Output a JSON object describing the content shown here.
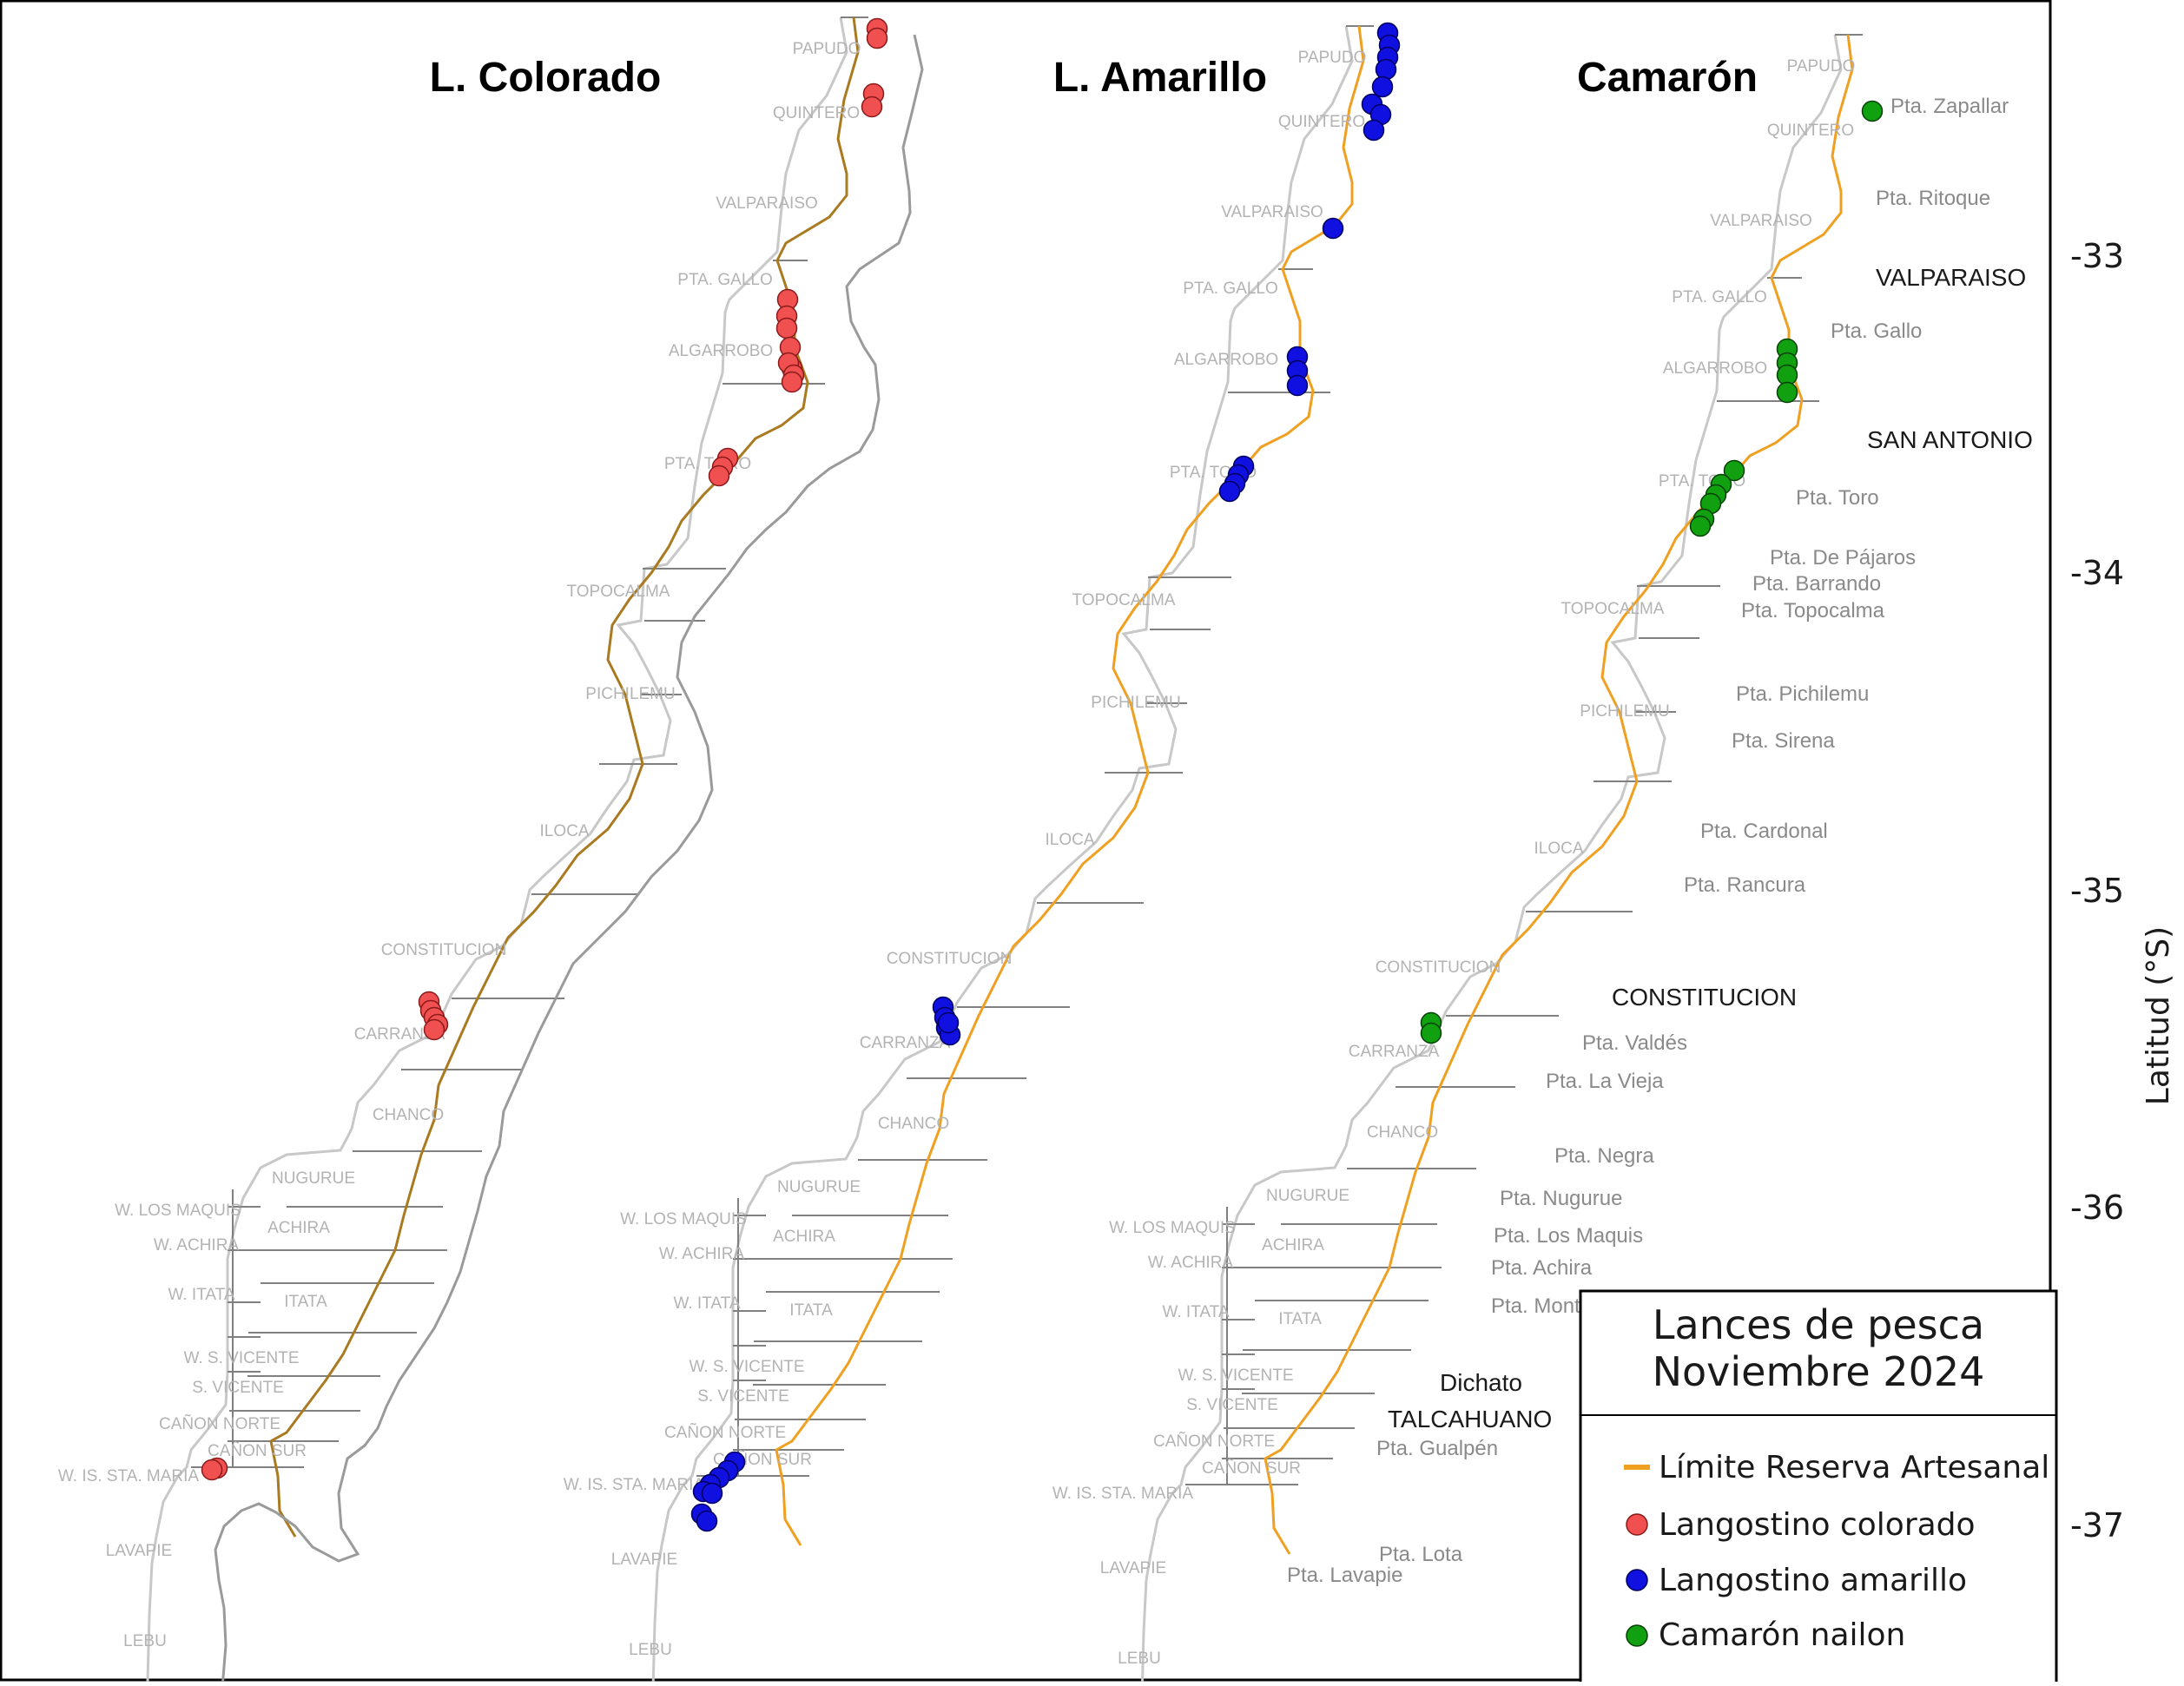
{
  "panels": [
    {
      "id": "colorado",
      "title": "L. Colorado",
      "series": "Langostino colorado"
    },
    {
      "id": "amarillo",
      "title": "L. Amarillo",
      "series": "Langostino amarillo"
    },
    {
      "id": "camaron",
      "title": "Camarón",
      "series": "Camarón nailon"
    }
  ],
  "zone_labels": [
    "PAPUDO",
    "QUINTERO",
    "VALPARAISO",
    "PTA. GALLO",
    "ALGARROBO",
    "PTA. TORO",
    "TOPOCALMA",
    "PICHILEMU",
    "ILOCA",
    "CONSTITUCION",
    "CARRANZA",
    "CHANCO",
    "NUGURUE",
    "W. LOS MAQUIS",
    "ACHIRA",
    "W. ACHIRA",
    "W. ITATA",
    "ITATA",
    "W. S. VICENTE",
    "S. VICENTE",
    "CAÑON NORTE",
    "CAÑON SUR",
    "W. IS. STA. MARIA",
    "LAVAPIE",
    "LEBU"
  ],
  "place_labels": [
    "Pta. Zapallar",
    "Pta. Ritoque",
    "Pta. Gallo",
    "Pta. Toro",
    "Pta. De Pájaros",
    "Pta. Barrando",
    "Pta. Topocalma",
    "Pta. Pichilemu",
    "Pta. Sirena",
    "Pta. Cardonal",
    "Pta. Rancura",
    "Pta. Valdés",
    "Pta. La Vieja",
    "Pta. Negra",
    "Pta. Nugurue",
    "Pta. Los Maquis",
    "Pta. Achira",
    "Pta. Mont",
    "Pta. Gualpén",
    "Pta. Lota",
    "Pta. Lavapie"
  ],
  "city_labels": [
    "VALPARAISO",
    "SAN ANTONIO",
    "CONSTITUCION",
    "Dichato",
    "TALCAHUANO"
  ],
  "axis": {
    "title": "Latitud (°S)",
    "ticks": [
      "-33",
      "-34",
      "-35",
      "-36",
      "-37"
    ]
  },
  "legend": {
    "title_line1": "Lances de pesca",
    "title_line2": "Noviembre 2024",
    "items": [
      {
        "label": "Límite Reserva Artesanal",
        "color": "#f0a020",
        "symbol": "line"
      },
      {
        "label": "Langostino colorado",
        "color": "#f05050",
        "symbol": "dot"
      },
      {
        "label": "Langostino amarillo",
        "color": "#1010e0",
        "symbol": "dot"
      },
      {
        "label": "Camarón nailon",
        "color": "#10a010",
        "symbol": "dot"
      }
    ]
  },
  "colors": {
    "reserve_line_colorado": "#a97a20",
    "reserve_line": "#f0a020",
    "coast": "#9a9a9a",
    "zone_edge": "#c8c8c8",
    "zone_divider": "#808080",
    "colorado": "#f05050",
    "amarillo": "#1010e0",
    "camaron": "#10a010"
  }
}
